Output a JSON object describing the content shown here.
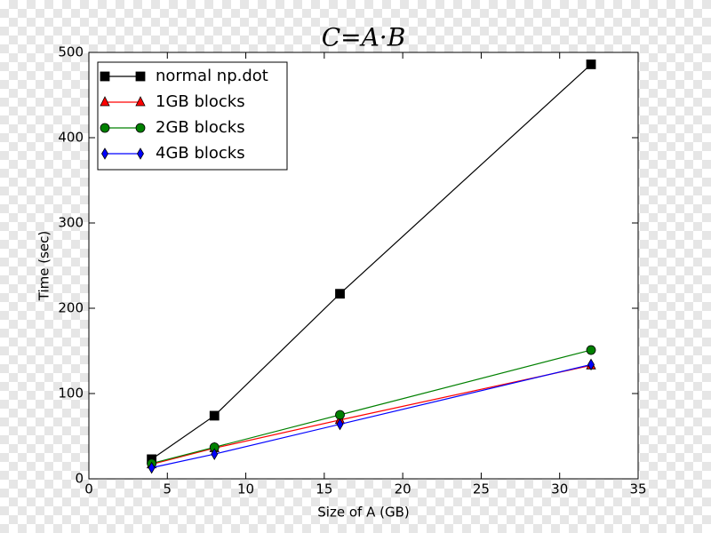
{
  "chart_data": {
    "type": "line",
    "title": "C=A·B",
    "x_label": "Size of A (GB)",
    "y_label": "Time (sec)",
    "x": [
      4,
      8,
      16,
      32
    ],
    "series": [
      {
        "name": "normal np.dot",
        "color": "#000000",
        "marker": "square",
        "values": [
          23,
          74,
          217,
          486
        ]
      },
      {
        "name": "1GB blocks",
        "color": "#ff0000",
        "marker": "triangle",
        "values": [
          17,
          36,
          69,
          133
        ]
      },
      {
        "name": "2GB blocks",
        "color": "#008000",
        "marker": "circle",
        "values": [
          18,
          37,
          75,
          151
        ]
      },
      {
        "name": "4GB blocks",
        "color": "#0000ff",
        "marker": "diamond",
        "values": [
          13,
          29,
          64,
          134
        ]
      }
    ],
    "xlim": [
      0,
      35
    ],
    "xticks": [
      0,
      5,
      10,
      15,
      20,
      25,
      30,
      35
    ],
    "ylim": [
      0,
      500
    ],
    "yticks": [
      0,
      100,
      200,
      300,
      400,
      500
    ],
    "legend": "upper left"
  }
}
